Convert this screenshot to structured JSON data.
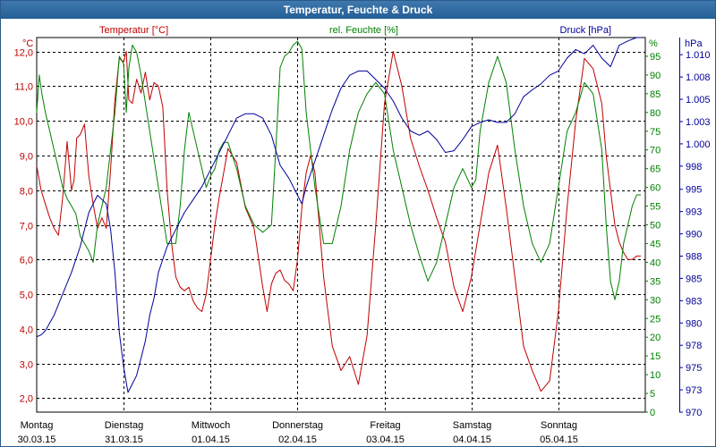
{
  "title": "Temperatur, Feuchte & Druck",
  "colors": {
    "temperature": "#c00000",
    "humidity": "#008000",
    "pressure": "#000099",
    "titlebar": "#2f6aa3",
    "grid": "#000000"
  },
  "chart_data": {
    "type": "line",
    "grid": true,
    "x_ticks": [
      {
        "day": "Montag",
        "date": "30.03.15"
      },
      {
        "day": "Dienstag",
        "date": "31.03.15"
      },
      {
        "day": "Mittwoch",
        "date": "01.04.15"
      },
      {
        "day": "Donnerstag",
        "date": "02.04.15"
      },
      {
        "day": "Freitag",
        "date": "03.04.15"
      },
      {
        "day": "Samstag",
        "date": "04.04.15"
      },
      {
        "day": "Sonntag",
        "date": "05.04.15"
      }
    ],
    "x_range_days": [
      0,
      7
    ],
    "axes": {
      "temperature": {
        "unit": "°C",
        "label": "Temperatur [°C]",
        "ylim": [
          1.6,
          12.4
        ],
        "ticks": [
          "12,0",
          "11,0",
          "10,0",
          "9,0",
          "8,0",
          "7,0",
          "6,0",
          "5,0",
          "4,0",
          "3,0",
          "2,0"
        ],
        "tick_values": [
          12,
          11,
          10,
          9,
          8,
          7,
          6,
          5,
          4,
          3,
          2
        ]
      },
      "humidity": {
        "unit": "%",
        "label": "rel. Feuchte [%]",
        "ylim": [
          0,
          100
        ],
        "ticks": [
          "95",
          "90",
          "85",
          "80",
          "75",
          "70",
          "65",
          "60",
          "55",
          "50",
          "45",
          "40",
          "35",
          "30",
          "25",
          "20",
          "15",
          "10",
          "5",
          "0"
        ],
        "tick_values": [
          95,
          90,
          85,
          80,
          75,
          70,
          65,
          60,
          55,
          50,
          45,
          40,
          35,
          30,
          25,
          20,
          15,
          10,
          5,
          0
        ]
      },
      "pressure": {
        "unit": "hPa",
        "label": "Druck [hPa]",
        "ylim": [
          970,
          1012.4
        ],
        "ticks": [
          "1.010",
          "1.008",
          "1.005",
          "1.003",
          "1.000",
          "998",
          "995",
          "993",
          "990",
          "988",
          "985",
          "983",
          "980",
          "978",
          "975",
          "973",
          "970"
        ],
        "tick_values": [
          1010.4,
          1007.8,
          1005.2,
          1002.6,
          1000,
          997.4,
          994.7,
          992.1,
          989.5,
          986.9,
          984.3,
          981.7,
          979.1,
          976.5,
          973.9,
          971.3,
          968.7
        ]
      }
    },
    "series": [
      {
        "name": "Temperatur [°C]",
        "axis": "temperature",
        "x": [
          0,
          0.05,
          0.1,
          0.15,
          0.2,
          0.25,
          0.3,
          0.35,
          0.4,
          0.43,
          0.46,
          0.5,
          0.55,
          0.6,
          0.65,
          0.7,
          0.75,
          0.8,
          0.85,
          0.9,
          0.95,
          1,
          1.03,
          1.06,
          1.1,
          1.15,
          1.2,
          1.25,
          1.3,
          1.35,
          1.4,
          1.45,
          1.5,
          1.55,
          1.6,
          1.65,
          1.7,
          1.75,
          1.8,
          1.85,
          1.9,
          1.95,
          2,
          2.05,
          2.1,
          2.15,
          2.2,
          2.3,
          2.4,
          2.5,
          2.6,
          2.65,
          2.7,
          2.75,
          2.8,
          2.85,
          2.9,
          2.95,
          3,
          3.05,
          3.1,
          3.15,
          3.2,
          3.25,
          3.3,
          3.35,
          3.4,
          3.5,
          3.6,
          3.7,
          3.8,
          3.9,
          4,
          4.1,
          4.2,
          4.3,
          4.4,
          4.5,
          4.6,
          4.7,
          4.8,
          4.9,
          5,
          5.1,
          5.2,
          5.3,
          5.4,
          5.5,
          5.6,
          5.7,
          5.8,
          5.9,
          6,
          6.1,
          6.2,
          6.3,
          6.4,
          6.5,
          6.55,
          6.6,
          6.65,
          6.7,
          6.75,
          6.8,
          6.85,
          6.9,
          6.95
        ],
        "values": [
          8.7,
          8.0,
          7.6,
          7.2,
          6.9,
          6.7,
          7.8,
          9.4,
          8.0,
          8.3,
          9.5,
          9.6,
          9.9,
          8.4,
          7.6,
          6.9,
          7.2,
          6.9,
          8.6,
          10.6,
          11.8,
          11.7,
          12.0,
          10.6,
          10.5,
          11.2,
          10.8,
          11.4,
          10.6,
          11.1,
          11.0,
          10.4,
          8.0,
          6.5,
          5.5,
          5.2,
          5.1,
          5.2,
          4.8,
          4.6,
          4.5,
          5.0,
          6.0,
          7.0,
          7.8,
          8.5,
          9.2,
          8.8,
          7.5,
          6.9,
          5.2,
          4.5,
          5.3,
          5.6,
          5.7,
          5.4,
          5.3,
          5.1,
          6.0,
          7.5,
          8.5,
          9.0,
          8.5,
          7.0,
          5.5,
          4.5,
          3.5,
          2.8,
          3.2,
          2.4,
          3.8,
          7.0,
          10.5,
          12.0,
          11.0,
          9.5,
          8.7,
          8.0,
          7.2,
          6.5,
          5.2,
          4.5,
          5.5,
          7.0,
          8.5,
          9.3,
          7.5,
          5.5,
          3.5,
          2.8,
          2.2,
          2.5,
          4.5,
          7.5,
          10.0,
          11.8,
          11.5,
          10.5,
          9.0,
          8.0,
          7.0,
          6.5,
          6.2,
          6.0,
          6.0,
          6.1,
          6.1
        ]
      },
      {
        "name": "rel. Feuchte [%]",
        "axis": "humidity",
        "x": [
          0,
          0.03,
          0.06,
          0.1,
          0.15,
          0.2,
          0.25,
          0.3,
          0.35,
          0.4,
          0.45,
          0.5,
          0.55,
          0.6,
          0.65,
          0.7,
          0.8,
          0.9,
          0.95,
          1,
          1.03,
          1.06,
          1.1,
          1.15,
          1.2,
          1.3,
          1.4,
          1.5,
          1.6,
          1.65,
          1.7,
          1.75,
          1.8,
          1.85,
          1.9,
          1.95,
          2,
          2.05,
          2.1,
          2.15,
          2.2,
          2.3,
          2.4,
          2.5,
          2.6,
          2.7,
          2.75,
          2.8,
          2.85,
          2.9,
          2.95,
          3,
          3.05,
          3.1,
          3.2,
          3.3,
          3.4,
          3.5,
          3.6,
          3.7,
          3.8,
          3.9,
          4,
          4.1,
          4.2,
          4.3,
          4.4,
          4.5,
          4.6,
          4.7,
          4.8,
          4.9,
          5,
          5.05,
          5.1,
          5.2,
          5.3,
          5.4,
          5.5,
          5.6,
          5.7,
          5.8,
          5.9,
          6,
          6.1,
          6.2,
          6.3,
          6.4,
          6.5,
          6.55,
          6.6,
          6.65,
          6.7,
          6.75,
          6.8,
          6.85,
          6.9,
          6.95
        ],
        "values": [
          80,
          90,
          85,
          80,
          75,
          70,
          65,
          60,
          57,
          55,
          53,
          47,
          45,
          43,
          40,
          50,
          60,
          80,
          95,
          93,
          80,
          92,
          98,
          96,
          90,
          75,
          60,
          45,
          45,
          55,
          70,
          80,
          75,
          70,
          65,
          60,
          63,
          65,
          70,
          72,
          72,
          65,
          55,
          50,
          48,
          50,
          70,
          92,
          95,
          96,
          98,
          99,
          97,
          80,
          60,
          45,
          45,
          55,
          70,
          80,
          85,
          88,
          85,
          70,
          60,
          50,
          42,
          35,
          40,
          50,
          60,
          65,
          60,
          62,
          75,
          88,
          95,
          88,
          70,
          55,
          45,
          40,
          45,
          60,
          75,
          80,
          88,
          85,
          70,
          50,
          35,
          30,
          35,
          45,
          50,
          55,
          58,
          58
        ]
      },
      {
        "name": "Druck [hPa]",
        "axis": "pressure",
        "x": [
          0,
          0.05,
          0.1,
          0.2,
          0.3,
          0.4,
          0.5,
          0.55,
          0.6,
          0.65,
          0.7,
          0.75,
          0.8,
          0.85,
          0.9,
          0.95,
          1,
          1.05,
          1.1,
          1.15,
          1.2,
          1.25,
          1.3,
          1.35,
          1.4,
          1.5,
          1.6,
          1.7,
          1.8,
          1.9,
          2,
          2.1,
          2.2,
          2.3,
          2.4,
          2.5,
          2.6,
          2.7,
          2.8,
          2.9,
          3,
          3.05,
          3.1,
          3.2,
          3.3,
          3.4,
          3.5,
          3.6,
          3.7,
          3.8,
          3.9,
          4,
          4.1,
          4.2,
          4.3,
          4.4,
          4.5,
          4.6,
          4.7,
          4.8,
          4.9,
          5,
          5.1,
          5.2,
          5.3,
          5.4,
          5.5,
          5.6,
          5.7,
          5.8,
          5.9,
          6,
          6.1,
          6.2,
          6.3,
          6.4,
          6.5,
          6.6,
          6.7,
          6.8,
          6.9,
          6.95
        ],
        "values": [
          977.5,
          977.7,
          978.2,
          980,
          982.5,
          985,
          988,
          990,
          992,
          993,
          994,
          993.5,
          993,
          990,
          985,
          978,
          974,
          971,
          972,
          973,
          975,
          977,
          980,
          982,
          985,
          988,
          990,
          992,
          993.5,
          995,
          997,
          999,
          1001,
          1003,
          1003.5,
          1003.5,
          1003,
          1001,
          997.5,
          996,
          994,
          993,
          995,
          998,
          1001,
          1004,
          1006.5,
          1008,
          1008.5,
          1008.5,
          1007.5,
          1006.5,
          1005,
          1003,
          1001.5,
          1001,
          1001.5,
          1000.5,
          999,
          999.2,
          1000.5,
          1002,
          1002.5,
          1002.8,
          1002.5,
          1002.5,
          1003.5,
          1005.5,
          1006.3,
          1007,
          1008,
          1008.5,
          1010,
          1011,
          1010.5,
          1011.5,
          1010,
          1009,
          1011.5,
          1012,
          1012.4,
          1012.4
        ]
      }
    ]
  }
}
